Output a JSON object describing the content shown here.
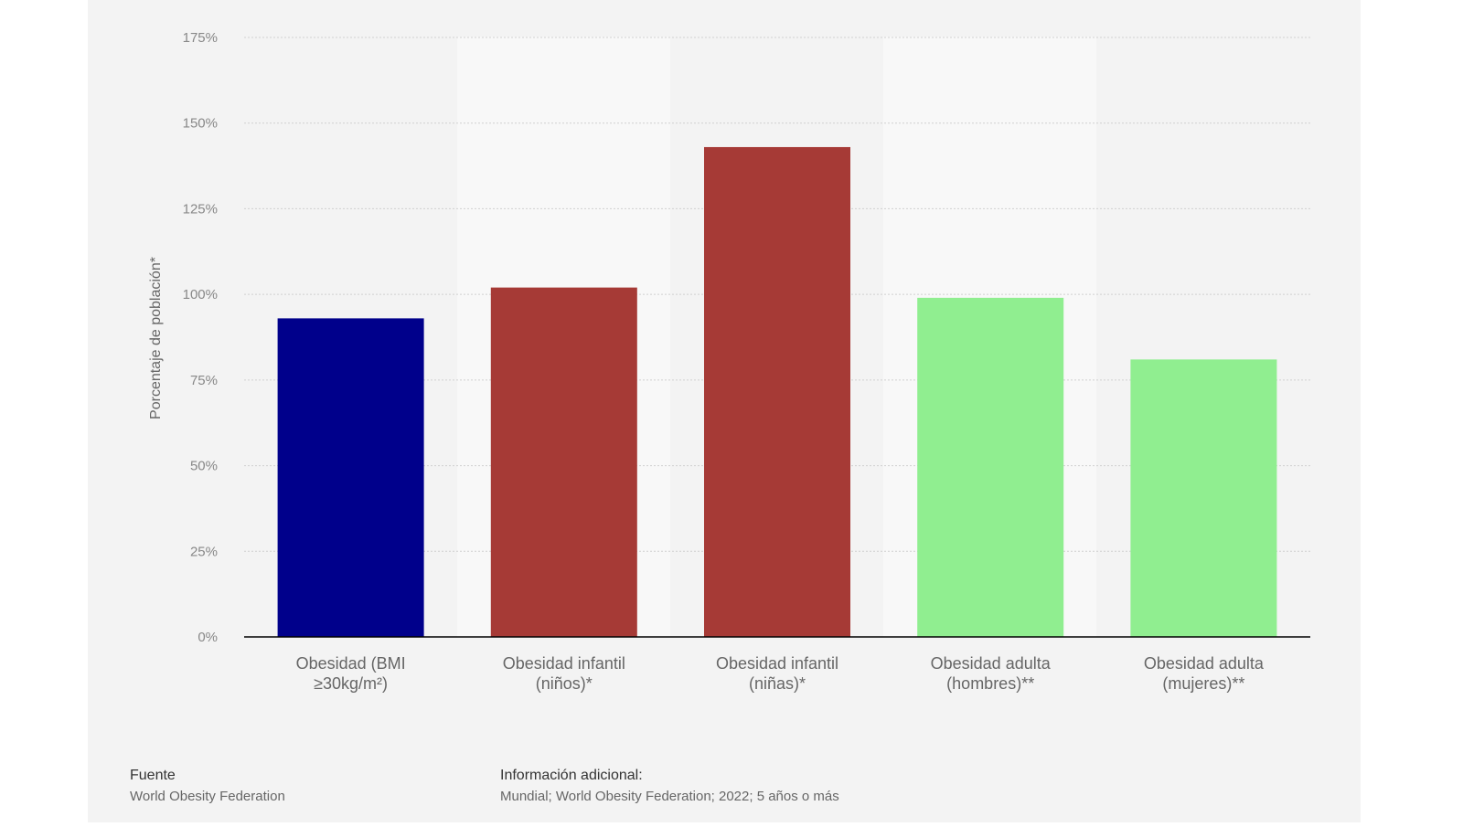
{
  "chart_data": {
    "type": "bar",
    "y_label": "Porcentaje de población*",
    "categories": [
      [
        "Obesidad (BMI",
        "≥30kg/m²)"
      ],
      [
        "Obesidad infantil",
        "(niños)*"
      ],
      [
        "Obesidad infantil",
        "(niñas)*"
      ],
      [
        "Obesidad adulta",
        "(hombres)**"
      ],
      [
        "Obesidad adulta",
        "(mujeres)**"
      ]
    ],
    "values": [
      93,
      102,
      143,
      99,
      81
    ],
    "colors": [
      "#00008b",
      "#a63a36",
      "#a63a36",
      "#90ee90",
      "#90ee90"
    ],
    "ylim": [
      0,
      175
    ],
    "yticks": [
      {
        "value": 0,
        "label": "0%"
      },
      {
        "value": 25,
        "label": "25%"
      },
      {
        "value": 50,
        "label": "50%"
      },
      {
        "value": 75,
        "label": "75%"
      },
      {
        "value": 100,
        "label": "100%"
      },
      {
        "value": 125,
        "label": "125%"
      },
      {
        "value": 150,
        "label": "150%"
      },
      {
        "value": 175,
        "label": "175%"
      }
    ],
    "grid": true
  },
  "footer": {
    "source_label": "Fuente",
    "source": "World Obesity Federation",
    "info_label": "Información adicional:",
    "info": "Mundial; World Obesity Federation; 2022; 5 años o más"
  }
}
